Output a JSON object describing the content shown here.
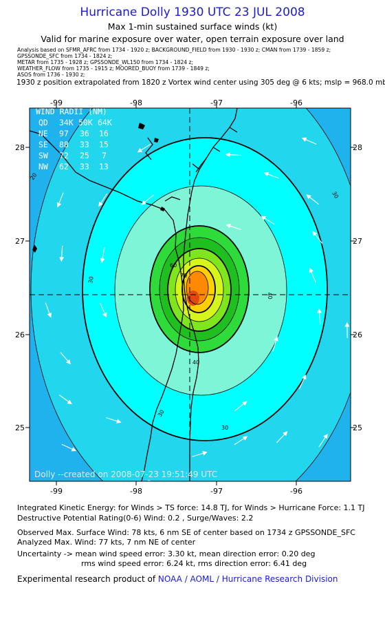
{
  "header": {
    "title": "Hurricane Dolly 1930 UTC 23 JUL 2008",
    "subtitle1": "Max 1-min sustained surface winds (kt)",
    "subtitle2": "Valid for marine exposure over water, open terrain exposure over land",
    "analysis_lines": [
      "Analysis based on   SFMR_AFRC from 1734 - 1920 z;  BACKGROUND_FIELD from 1930 - 1930 z;  CMAN from 1739 - 1859 z;",
      "GPSSONDE_SFC from 1734 - 1824 z;",
      "METAR from 1735 - 1928 z;  GPSSONDE_WL150 from 1734 - 1824 z;",
      "WEATHER_FLOW from 1735 - 1915 z;  MOORED_BUOY from 1739 - 1849 z;",
      "ASOS from 1736 - 1930 z;"
    ],
    "position_line": "1930 z position extrapolated from 1820 z Vortex wind center using 305 deg @ 6 kts; mslp = 968.0 mb"
  },
  "map": {
    "lon_ticks": [
      "-99",
      "-98",
      "-97",
      "-96"
    ],
    "lat_ticks": [
      "28",
      "27",
      "26",
      "25"
    ],
    "contour_labels": [
      "20",
      "30",
      "30",
      "30",
      "30",
      "40",
      "40",
      "60",
      "70"
    ],
    "wind_radii": {
      "title": "WIND RADII (NM)",
      "header": [
        "QD",
        "34K",
        "50K",
        "64K"
      ],
      "rows": [
        [
          "NE",
          "97",
          "36",
          "16"
        ],
        [
          "SE",
          "88",
          "33",
          "15"
        ],
        [
          "SW",
          "72",
          "25",
          "7"
        ],
        [
          "NW",
          "62",
          "33",
          "13"
        ]
      ]
    },
    "created_stamp": "Dolly --created on 2008-07-23 19:51:49 UTC",
    "colors": {
      "outer": "#2f86e8",
      "ring1": "#1fb2ec",
      "ring2": "#22d6ee",
      "ring3": "#00ffff",
      "ring4": "#7ff5d8",
      "ring5": "#2edb3a",
      "ring6": "#1fbf20",
      "ring7": "#7fe51c",
      "ring8": "#d6f51a",
      "ring9": "#ffd000",
      "ring10": "#ff8a00",
      "core": "#e04a10",
      "land": "#000000"
    }
  },
  "footer": {
    "ike": "Integrated Kinetic Energy:  for Winds > TS force: 14.8 TJ,  for Winds > Hurricane Force: 1.1 TJ",
    "dpr": "Destructive Potential Rating(0-6)   Wind: 0.2 , Surge/Waves: 2.2",
    "observed": "Observed Max. Surface Wind: 78 kts, 6 nm SE of center based on 1734 z GPSSONDE_SFC",
    "analyzed": "Analyzed Max. Wind: 77 kts, 7 nm NE of center",
    "uncert1": "Uncertainty -> mean wind speed error: 3.30 kt,   mean direction error: 0.20 deg",
    "uncert2": "rms wind speed error: 6.24 kt,   rms direction error: 6.41 deg",
    "credit_prefix": "Experimental research product of ",
    "credit_org": "NOAA / AOML / Hurricane Research Division"
  }
}
